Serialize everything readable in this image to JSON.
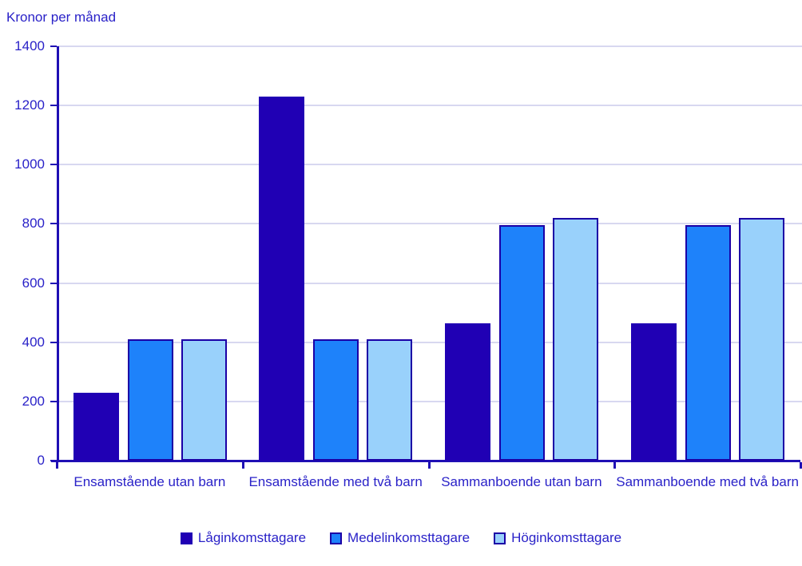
{
  "title": "Kronor per månad",
  "colors": {
    "series_dark": "#2000b4",
    "series_medium": "#1e82fa",
    "series_light": "#99d1fb",
    "bar_border": "#1b00a6",
    "axis": "#1f0fb4",
    "gridline": "#d8d8f0",
    "text": "#2a22c8",
    "background": "#ffffff"
  },
  "chart_data": {
    "type": "bar",
    "title": "Kronor per månad",
    "categories": [
      "Ensamstående utan barn",
      "Ensamstående med två barn",
      "Sammanboende utan barn",
      "Sammanboende med två barn"
    ],
    "series": [
      {
        "name": "Låginkomsttagare",
        "color": "#2000b4",
        "values": [
          230,
          1230,
          465,
          465
        ]
      },
      {
        "name": "Medelinkomsttagare",
        "color": "#1e82fa",
        "values": [
          410,
          410,
          795,
          795
        ]
      },
      {
        "name": "Höginkomsttagare",
        "color": "#99d1fb",
        "values": [
          410,
          410,
          820,
          820
        ]
      }
    ],
    "xlabel": "",
    "ylabel": "Kronor per månad",
    "ylim": [
      0,
      1400
    ],
    "ytick_step": 200,
    "yticks": [
      0,
      200,
      400,
      600,
      800,
      1000,
      1200,
      1400
    ],
    "grid": "horizontal",
    "legend_position": "bottom"
  }
}
